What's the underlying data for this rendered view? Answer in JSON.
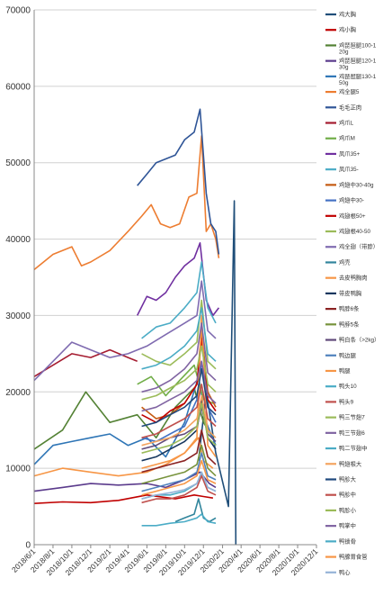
{
  "chart_data": {
    "type": "line",
    "title": "",
    "xlabel": "",
    "ylabel": "",
    "ylim": [
      0,
      70000
    ],
    "yticks": [
      0,
      10000,
      20000,
      30000,
      40000,
      50000,
      60000,
      70000
    ],
    "ytick_labels": [
      "0",
      "10000",
      "20000",
      "30000",
      "40000",
      "50000",
      "60000",
      "70000"
    ],
    "xtick_labels": [
      "2018/6/1",
      "2018/8/1",
      "2018/10/1",
      "2018/12/1",
      "2019/2/1",
      "2019/4/1",
      "2019/6/1",
      "2019/8/1",
      "2019/10/1",
      "2019/12/1",
      "2020/2/1",
      "2020/4/1",
      "2020/6/1",
      "2020/8/1",
      "2020/10/1",
      "2020/12/1"
    ],
    "x_is_date": true,
    "legend_position": "right",
    "grid": "horizontal",
    "series": [
      {
        "name": "鸡大胸",
        "color": "#1f4e79",
        "x": [
          "2019/11/15",
          "2019/12/10",
          "2020/1/10",
          "2020/2/20",
          "2020/3/10",
          "2020/3/15"
        ],
        "y": [
          11000,
          20000,
          12000,
          5000,
          45000,
          0
        ]
      },
      {
        "name": "鸡小胸",
        "color": "#c00000",
        "x": [
          "2018/6/1",
          "2018/9/1",
          "2018/12/1",
          "2019/3/1",
          "2019/6/1",
          "2019/9/1",
          "2019/11/1",
          "2019/12/1",
          "2020/1/1"
        ],
        "y": [
          5400,
          5600,
          5500,
          5800,
          6500,
          6000,
          6500,
          6300,
          6100
        ]
      },
      {
        "name": "鸡琵琶腿100-120g",
        "color": "#548235",
        "x": [
          "2018/6/1",
          "2018/9/1",
          "2018/11/15",
          "2019/2/1",
          "2019/5/1",
          "2019/7/1",
          "2019/9/1",
          "2019/11/1",
          "2019/12/1",
          "2020/1/1"
        ],
        "y": [
          12500,
          15000,
          20000,
          16000,
          17000,
          14000,
          18000,
          20500,
          16000,
          14000
        ]
      },
      {
        "name": "鸡琵琶腿120-130g",
        "color": "#5b3b8c",
        "x": [
          "2018/6/1",
          "2018/9/1",
          "2018/12/1",
          "2019/3/1",
          "2019/6/1",
          "2019/8/1",
          "2019/10/1",
          "2019/11/20",
          "2019/12/20",
          "2020/1/10"
        ],
        "y": [
          7000,
          7500,
          8000,
          7800,
          8000,
          7500,
          8500,
          9500,
          8000,
          7500
        ]
      },
      {
        "name": "鸡琵琶腿130-150g",
        "color": "#2e75b6",
        "x": [
          "2018/6/1",
          "2018/8/1",
          "2018/10/1",
          "2018/12/1",
          "2019/2/1",
          "2019/4/1",
          "2019/6/1",
          "2019/8/1",
          "2019/10/1",
          "2019/11/15",
          "2019/12/10",
          "2020/1/10"
        ],
        "y": [
          10500,
          13000,
          13500,
          14000,
          14500,
          13000,
          14000,
          11500,
          16000,
          22000,
          16000,
          13000
        ]
      },
      {
        "name": "鸡全腿5",
        "color": "#ed7d31",
        "x": [
          "2018/6/1",
          "2018/8/1",
          "2018/10/1",
          "2018/11/1",
          "2018/12/1",
          "2019/2/1",
          "2019/4/1",
          "2019/5/15",
          "2019/6/15",
          "2019/7/15",
          "2019/8/15",
          "2019/9/15",
          "2019/10/15",
          "2019/11/10",
          "2019/11/25",
          "2019/12/10",
          "2019/12/25",
          "2020/1/10",
          "2020/1/20"
        ],
        "y": [
          36000,
          38000,
          39000,
          36500,
          37000,
          38500,
          41000,
          43000,
          44500,
          42000,
          41500,
          42000,
          45500,
          46000,
          53500,
          41000,
          42000,
          40000,
          37500
        ]
      },
      {
        "name": "毛毛正肉",
        "color": "#2f5597",
        "x": [
          "2019/5/1",
          "2019/6/1",
          "2019/7/1",
          "2019/8/1",
          "2019/9/1",
          "2019/10/1",
          "2019/11/1",
          "2019/11/20",
          "2019/12/10",
          "2019/12/25",
          "2020/1/10",
          "2020/1/20"
        ],
        "y": [
          47000,
          48500,
          50000,
          50500,
          51000,
          53000,
          54000,
          57000,
          46000,
          42000,
          41000,
          38000
        ]
      },
      {
        "name": "鸡爪L",
        "color": "#a51c30",
        "x": [
          "2018/6/1",
          "2018/8/1",
          "2018/10/1",
          "2018/12/1",
          "2019/2/1",
          "2019/4/1",
          "2019/5/1"
        ],
        "y": [
          22000,
          23500,
          25000,
          24500,
          25500,
          24500,
          24000
        ]
      },
      {
        "name": "鸡爪M",
        "color": "#70ad47",
        "x": [
          "2019/5/1",
          "2019/6/15",
          "2019/8/1",
          "2019/9/15",
          "2019/11/1",
          "2019/12/1",
          "2020/1/1"
        ],
        "y": [
          21000,
          22000,
          19500,
          21500,
          23500,
          19000,
          18500
        ]
      },
      {
        "name": "凤爪35+",
        "color": "#7030a0",
        "x": [
          "2019/5/1",
          "2019/6/1",
          "2019/7/1",
          "2019/8/1",
          "2019/9/1",
          "2019/10/1",
          "2019/11/1",
          "2019/11/20",
          "2019/12/10",
          "2020/1/1",
          "2020/1/20"
        ],
        "y": [
          30000,
          32500,
          32000,
          33000,
          35000,
          36500,
          37500,
          39500,
          32000,
          30000,
          31000
        ]
      },
      {
        "name": "凤爪35-",
        "color": "#4bacc6",
        "x": [
          "2019/5/15",
          "2019/7/1",
          "2019/8/15",
          "2019/10/1",
          "2019/11/10",
          "2019/11/25",
          "2019/12/15",
          "2020/1/10"
        ],
        "y": [
          27000,
          28500,
          29000,
          31000,
          33000,
          37000,
          31000,
          29000
        ]
      },
      {
        "name": "鸡翅中30-40g",
        "color": "#c55a11",
        "x": [
          "2019/5/15",
          "2019/7/1",
          "2019/8/15",
          "2019/10/1",
          "2019/11/10",
          "2019/11/25",
          "2019/12/15",
          "2020/1/10"
        ],
        "y": [
          18000,
          16500,
          17000,
          18500,
          21000,
          28000,
          20000,
          18000
        ]
      },
      {
        "name": "鸡翅中30-",
        "color": "#4472c4",
        "x": [
          "2019/5/15",
          "2019/7/1",
          "2019/8/15",
          "2019/10/1",
          "2019/11/10",
          "2019/11/25",
          "2019/12/15",
          "2020/1/10"
        ],
        "y": [
          14000,
          13500,
          14500,
          15500,
          19000,
          24000,
          18000,
          16000
        ]
      },
      {
        "name": "鸡翅根50+",
        "color": "#c00000",
        "x": [
          "2019/5/15",
          "2019/7/1",
          "2019/8/15",
          "2019/10/1",
          "2019/11/10",
          "2019/11/25",
          "2019/12/15",
          "2020/1/10"
        ],
        "y": [
          17000,
          16000,
          17500,
          18500,
          21000,
          27000,
          19000,
          17500
        ]
      },
      {
        "name": "鸡翅根40-50",
        "color": "#9bbb59",
        "x": [
          "2019/5/15",
          "2019/7/1",
          "2019/8/15",
          "2019/10/1",
          "2019/11/10",
          "2019/11/25",
          "2019/12/15",
          "2020/1/10"
        ],
        "y": [
          25000,
          24000,
          23500,
          25000,
          26500,
          32000,
          24000,
          23000
        ]
      },
      {
        "name": "鸡全翅（带脖）",
        "color": "#7f6bb0",
        "x": [
          "2018/6/1",
          "2018/8/1",
          "2018/10/1",
          "2018/12/1",
          "2019/2/1",
          "2019/4/1",
          "2019/6/1",
          "2019/8/1",
          "2019/10/1",
          "2019/11/10",
          "2019/11/25",
          "2019/12/15",
          "2020/1/10"
        ],
        "y": [
          21500,
          24000,
          26500,
          25500,
          24500,
          25000,
          26000,
          27500,
          29000,
          30000,
          34500,
          28000,
          27000
        ]
      },
      {
        "name": "鸡壳",
        "color": "#31859c",
        "x": [
          "2019/9/1",
          "2019/10/1",
          "2019/11/1",
          "2019/11/15",
          "2019/12/1",
          "2019/12/20",
          "2020/1/10"
        ],
        "y": [
          3000,
          3500,
          4000,
          6000,
          3500,
          3000,
          3500
        ]
      },
      {
        "name": "去皮鸭胸肉",
        "color": "#f79646",
        "x": [
          "2018/6/1",
          "2018/9/1",
          "2018/12/1",
          "2019/3/1",
          "2019/6/1",
          "2019/8/1",
          "2019/10/1",
          "2019/11/15",
          "2019/12/1",
          "2020/1/1"
        ],
        "y": [
          9000,
          10000,
          9500,
          9000,
          9500,
          10500,
          12000,
          14000,
          11000,
          10000
        ]
      },
      {
        "name": "带皮鸭胸",
        "color": "#17375e",
        "x": [
          "2019/5/15",
          "2019/7/1",
          "2019/8/15",
          "2019/10/1",
          "2019/11/10",
          "2019/11/25",
          "2019/12/15",
          "2020/1/10"
        ],
        "y": [
          11000,
          11500,
          12500,
          13500,
          15000,
          19000,
          14000,
          12500
        ]
      },
      {
        "name": "鸭脖6条",
        "color": "#8b2323",
        "x": [
          "2019/5/15",
          "2019/7/1",
          "2019/8/15",
          "2019/10/1",
          "2019/11/10",
          "2019/11/25",
          "2019/12/15",
          "2020/1/10"
        ],
        "y": [
          9500,
          10000,
          10500,
          11000,
          12000,
          15000,
          11500,
          10500
        ]
      },
      {
        "name": "鸭脖5条",
        "color": "#77933c",
        "x": [
          "2019/5/15",
          "2019/7/1",
          "2019/8/15",
          "2019/10/1",
          "2019/11/10",
          "2019/11/25",
          "2019/12/15",
          "2020/1/10"
        ],
        "y": [
          8000,
          8500,
          9000,
          9500,
          10500,
          13000,
          10000,
          9000
        ]
      },
      {
        "name": "鸭白条（>2kg）",
        "color": "#604a7b",
        "x": [
          "2019/5/15",
          "2019/7/1",
          "2019/8/15",
          "2019/10/1",
          "2019/11/10",
          "2019/11/25",
          "2019/12/15",
          "2020/1/10"
        ],
        "y": [
          12500,
          13000,
          14000,
          14500,
          15500,
          18000,
          14500,
          13500
        ]
      },
      {
        "name": "鸭边腿",
        "color": "#4f81bd",
        "x": [
          "2019/5/15",
          "2019/7/1",
          "2019/8/15",
          "2019/10/1",
          "2019/11/10",
          "2019/11/25",
          "2019/12/15",
          "2020/1/10"
        ],
        "y": [
          7000,
          7500,
          8000,
          8500,
          9500,
          12000,
          9000,
          8500
        ]
      },
      {
        "name": "鸭腿",
        "color": "#f79646",
        "x": [
          "2019/5/15",
          "2019/7/1",
          "2019/8/15",
          "2019/10/1",
          "2019/11/10",
          "2019/11/25",
          "2019/12/15",
          "2020/1/10"
        ],
        "y": [
          10000,
          10500,
          11000,
          12000,
          14000,
          30000,
          13000,
          11500
        ]
      },
      {
        "name": "鸭头10",
        "color": "#4bacc6",
        "x": [
          "2019/5/15",
          "2019/7/1",
          "2019/8/15",
          "2019/10/1",
          "2019/11/10",
          "2019/11/25",
          "2019/12/15",
          "2020/1/10"
        ],
        "y": [
          6000,
          6500,
          6500,
          7000,
          8000,
          9500,
          7500,
          7000
        ]
      },
      {
        "name": "鸭头9",
        "color": "#c0504d",
        "x": [
          "2019/5/15",
          "2019/7/1",
          "2019/8/15",
          "2019/10/1",
          "2019/11/10",
          "2019/11/25",
          "2019/12/15",
          "2020/1/10"
        ],
        "y": [
          5500,
          6000,
          6000,
          6500,
          7500,
          9000,
          7000,
          6500
        ]
      },
      {
        "name": "鸭三节翅7",
        "color": "#9bbb59",
        "x": [
          "2019/5/15",
          "2019/7/1",
          "2019/8/15",
          "2019/10/1",
          "2019/11/10",
          "2019/11/25",
          "2019/12/15",
          "2020/1/10"
        ],
        "y": [
          19000,
          19500,
          20500,
          21500,
          23000,
          26000,
          21000,
          20000
        ]
      },
      {
        "name": "鸭三节翅6",
        "color": "#8064a2",
        "x": [
          "2019/5/15",
          "2019/7/1",
          "2019/8/15",
          "2019/10/1",
          "2019/11/10",
          "2019/11/25",
          "2019/12/15",
          "2020/1/10"
        ],
        "y": [
          17500,
          18000,
          19000,
          20000,
          21500,
          24000,
          19500,
          18500
        ]
      },
      {
        "name": "鸭二节翅中",
        "color": "#4aacc5",
        "x": [
          "2019/5/15",
          "2019/7/1",
          "2019/8/15",
          "2019/10/1",
          "2019/11/10",
          "2019/11/25",
          "2019/12/15",
          "2020/1/10"
        ],
        "y": [
          23000,
          23500,
          24500,
          26000,
          28000,
          31000,
          25000,
          24000
        ]
      },
      {
        "name": "鸭翅根大",
        "color": "#f4a460",
        "x": [
          "2019/5/15",
          "2019/7/1",
          "2019/8/15",
          "2019/10/1",
          "2019/11/10",
          "2019/11/25",
          "2019/12/15",
          "2020/1/10"
        ],
        "y": [
          13000,
          13500,
          14000,
          15000,
          16500,
          19500,
          15000,
          14000
        ]
      },
      {
        "name": "鸭胗大",
        "color": "#1f497d",
        "x": [
          "2019/5/15",
          "2019/7/1",
          "2019/8/15",
          "2019/10/1",
          "2019/11/10",
          "2019/11/25",
          "2019/12/15",
          "2020/1/10"
        ],
        "y": [
          15500,
          16000,
          17000,
          18000,
          19500,
          23000,
          18000,
          17000
        ]
      },
      {
        "name": "鸭胗中",
        "color": "#c0504d",
        "x": [
          "2019/5/15",
          "2019/7/1",
          "2019/8/15",
          "2019/10/1",
          "2019/11/10",
          "2019/11/25",
          "2019/12/15",
          "2020/1/10"
        ],
        "y": [
          14000,
          14500,
          15500,
          16500,
          18000,
          21000,
          16500,
          15500
        ]
      },
      {
        "name": "鸭胗小",
        "color": "#9bbb59",
        "x": [
          "2019/5/15",
          "2019/7/1",
          "2019/8/15",
          "2019/10/1",
          "2019/11/10",
          "2019/11/25",
          "2019/12/15",
          "2020/1/10"
        ],
        "y": [
          12000,
          12500,
          13000,
          14000,
          15500,
          18500,
          14000,
          13000
        ]
      },
      {
        "name": "鸭掌中",
        "color": "#8064a2",
        "x": [
          "2019/5/15",
          "2019/7/1",
          "2019/8/15",
          "2019/10/1",
          "2019/11/10",
          "2019/11/25",
          "2019/12/15",
          "2020/1/10"
        ],
        "y": [
          20000,
          20500,
          21500,
          23000,
          25000,
          29000,
          22500,
          21500
        ]
      },
      {
        "name": "鸭锁骨",
        "color": "#4bacc6",
        "x": [
          "2019/5/15",
          "2019/7/1",
          "2019/8/15",
          "2019/10/1",
          "2019/11/10",
          "2019/11/25",
          "2019/12/15",
          "2020/1/10"
        ],
        "y": [
          2500,
          2500,
          2800,
          3000,
          3500,
          4000,
          3000,
          2800
        ]
      },
      {
        "name": "鸭腺胃食管",
        "color": "#f79646",
        "x": [
          "2019/5/15",
          "2019/7/1",
          "2019/8/15",
          "2019/10/1",
          "2019/11/10",
          "2019/11/25",
          "2019/12/15",
          "2020/1/10"
        ],
        "y": [
          6500,
          7000,
          7500,
          8000,
          9000,
          11000,
          8500,
          8000
        ]
      },
      {
        "name": "鸭心",
        "color": "#95b3d7",
        "x": [
          "2019/5/15",
          "2019/7/1",
          "2019/8/15",
          "2019/10/1",
          "2019/11/10",
          "2019/11/25",
          "2019/12/15",
          "2020/1/10"
        ],
        "y": [
          6000,
          6500,
          6800,
          7200,
          8000,
          9500,
          7500,
          7000
        ]
      }
    ]
  }
}
